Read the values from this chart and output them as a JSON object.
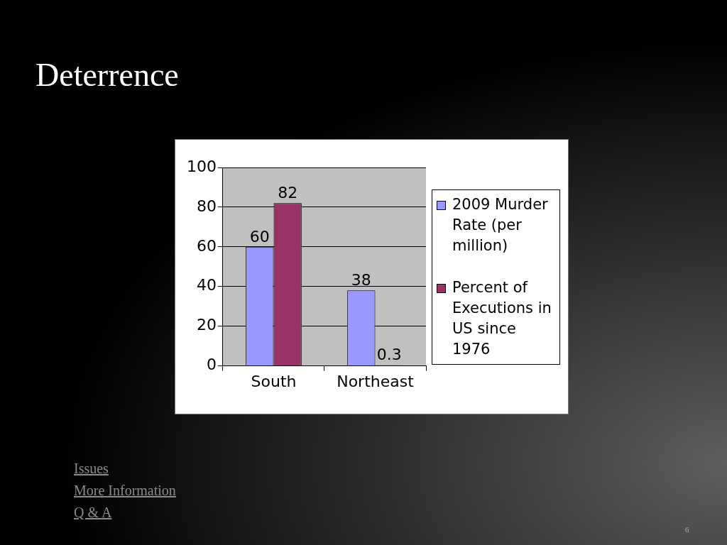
{
  "chart_data": {
    "type": "bar",
    "title": "Deterrence",
    "categories": [
      "South",
      "Northeast"
    ],
    "series": [
      {
        "name": "2009 Murder Rate (per million)",
        "color": "#9999ff",
        "values": [
          60,
          38
        ]
      },
      {
        "name": "Percent of Executions in US since 1976",
        "color": "#993366",
        "values": [
          82,
          0.3
        ]
      }
    ],
    "ylim": [
      0,
      100
    ],
    "yticks": [
      0,
      20,
      40,
      60,
      80,
      100
    ],
    "grid": "y",
    "legend": "right",
    "data_labels": true,
    "annotations": [
      "Issues",
      "More Information",
      "Q & A",
      "6"
    ]
  }
}
